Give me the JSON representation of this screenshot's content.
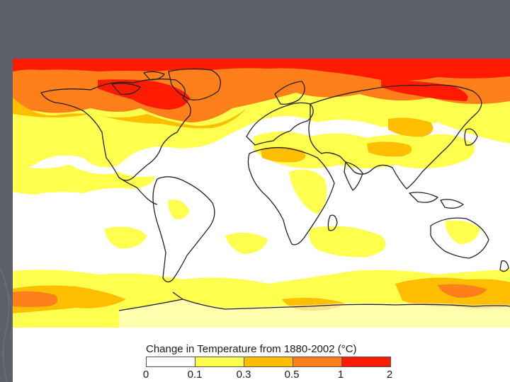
{
  "legend": {
    "title": "Change in Temperature from 1880-2002 (°C)",
    "ticks": [
      "0",
      "0.1",
      "0.3",
      "0.5",
      "1",
      "2"
    ],
    "colors": [
      "#ffffff",
      "#ffff4d",
      "#ffbf00",
      "#ff7f1a",
      "#ff1a00"
    ]
  },
  "colors": {
    "slide_background": "#5d5f6b",
    "coastline": "#222222"
  }
}
